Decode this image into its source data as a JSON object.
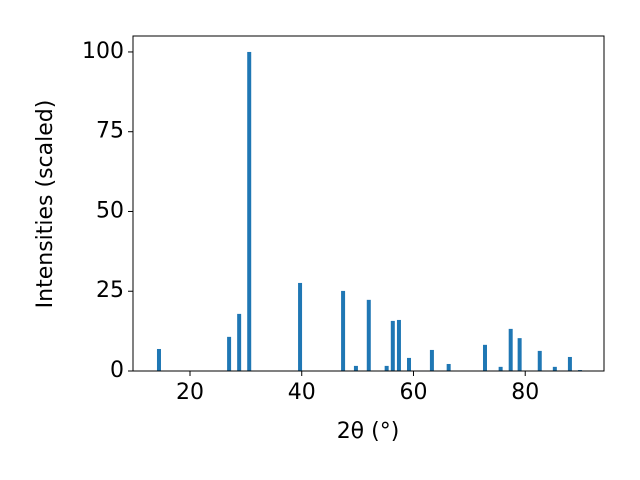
{
  "chart_data": {
    "type": "bar",
    "x_label": "2θ (°)",
    "y_label": "Intensities (scaled)",
    "x": [
      14.45,
      27.0,
      28.8,
      30.6,
      39.7,
      47.4,
      49.7,
      52.0,
      55.2,
      56.3,
      57.4,
      59.2,
      63.3,
      66.3,
      72.8,
      75.6,
      77.4,
      79.0,
      82.6,
      85.3,
      88.0,
      89.8
    ],
    "values": [
      6.9,
      10.7,
      17.9,
      100,
      27.6,
      25.1,
      1.6,
      22.3,
      1.6,
      15.7,
      16.0,
      4.1,
      6.6,
      2.2,
      8.2,
      1.3,
      13.2,
      10.3,
      6.3,
      1.3,
      4.4,
      0.3
    ],
    "color": "#1f77b4",
    "xlim": [
      9.8,
      94.1
    ],
    "xticks": [
      20,
      40,
      60,
      80
    ],
    "ylim": [
      0,
      105
    ],
    "yticks": [
      0,
      25,
      50,
      75,
      100
    ]
  }
}
